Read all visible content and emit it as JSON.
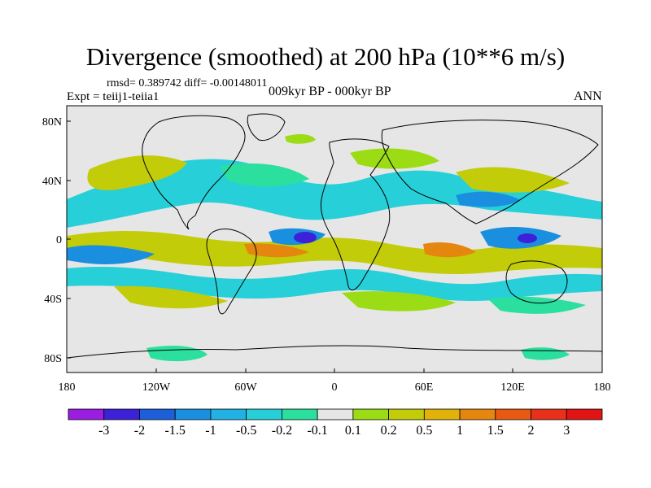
{
  "title": "Divergence (smoothed) at 200 hPa (10**6 m/s)",
  "stats": "rmsd= 0.389742 diff= -0.00148011",
  "experiment": "Expt = teiij1-teiia1",
  "period": "009kyr BP - 000kyr BP",
  "season": "ANN",
  "lat_ticks": [
    "80N",
    "40N",
    "0",
    "40S",
    "80S"
  ],
  "lon_ticks": [
    "180",
    "120W",
    "60W",
    "0",
    "60E",
    "120E",
    "180"
  ],
  "colorbar": {
    "labels": [
      "-3",
      "-2",
      "-1.5",
      "-1",
      "-0.5",
      "-0.2",
      "-0.1",
      "0.1",
      "0.2",
      "0.5",
      "1",
      "1.5",
      "2",
      "3"
    ],
    "colors": [
      "#9b1ee0",
      "#3c21d8",
      "#1c5fd8",
      "#1a8fe0",
      "#22b1e4",
      "#27d0d8",
      "#2bdf9e",
      "#e6e6e6",
      "#9cdc14",
      "#c3cc08",
      "#e3b20a",
      "#e5860f",
      "#e85a12",
      "#e8301a",
      "#e01414"
    ]
  },
  "palette": {
    "neutral": "#e6e6e6",
    "pos_weak": "#9cdc14",
    "pos_med": "#c3cc08",
    "pos_strong": "#e3b20a",
    "pos_vstrong": "#e5860f",
    "neg_weak": "#2bdf9e",
    "neg_med": "#27d0d8",
    "neg_strong": "#1a8fe0",
    "neg_vstrong": "#3c21d8"
  }
}
